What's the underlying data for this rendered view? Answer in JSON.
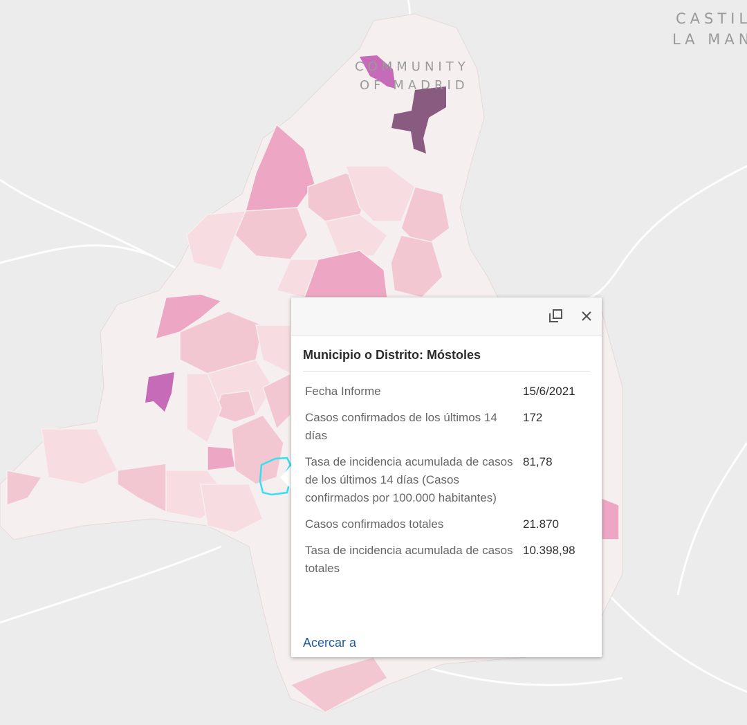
{
  "map": {
    "labels": {
      "community_line1": "COMMUNITY",
      "community_line2": "OF MADRID",
      "region_line1": "CASTIL",
      "region_line2": "LA MAN"
    },
    "colors": {
      "background": "#ececec",
      "region_fill": "#f6efef",
      "very_light": "#f7dde2",
      "light": "#f3c7d2",
      "medium": "#eda7c4",
      "strong": "#d77ebd",
      "magenta": "#c56bb7",
      "dark": "#8a5b80",
      "selected_outline": "#33e0f2"
    }
  },
  "popup": {
    "title": "Municipio o Distrito: Móstoles",
    "dock_icon": "dock-window-icon",
    "close_icon": "close-icon",
    "fields": [
      {
        "label": "Fecha Informe",
        "value": "15/6/2021"
      },
      {
        "label": "Casos confirmados de los últimos 14 días",
        "value": "172"
      },
      {
        "label": "Tasa de incidencia acumulada de casos de los últimos 14 días (Casos confirmados por 100.000 habitantes)",
        "value": "81,78"
      },
      {
        "label": "Casos confirmados totales",
        "value": "21.870"
      },
      {
        "label": "Tasa de incidencia acumulada de casos totales",
        "value": "10.398,98"
      }
    ],
    "zoom_link": "Acercar a"
  }
}
